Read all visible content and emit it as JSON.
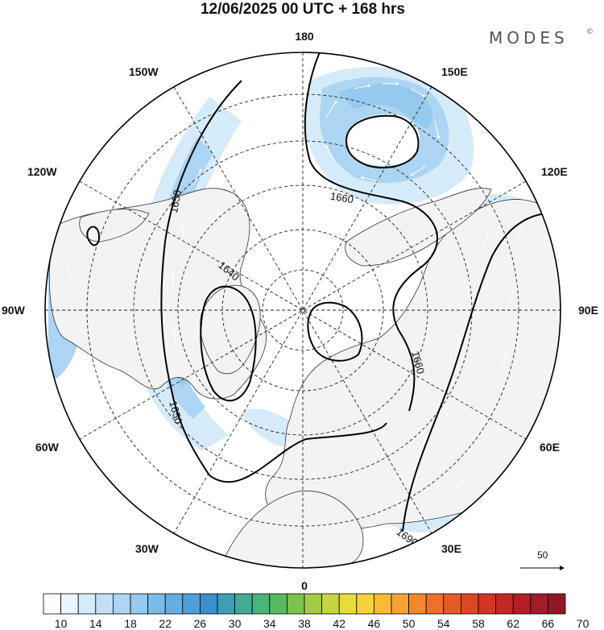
{
  "title": "12/06/2025  00 UTC  + 168 hrs",
  "brand": "MODES",
  "brand_mark": "©",
  "longitude_labels": {
    "top": "180",
    "bottom": "0",
    "left": "90W",
    "right": "90E",
    "upper_left_1": "150W",
    "upper_left_2": "120W",
    "upper_right_1": "150E",
    "upper_right_2": "120E",
    "lower_left_1": "60W",
    "lower_left_2": "30W",
    "lower_right_1": "60E",
    "lower_right_2": "30E"
  },
  "contour_labels": [
    "1650",
    "1640",
    "1660",
    "1660",
    "1650",
    "1690"
  ],
  "reference_vector": {
    "value": "50"
  },
  "colorbar": {
    "ticks": [
      "10",
      "14",
      "18",
      "22",
      "26",
      "30",
      "34",
      "38",
      "42",
      "46",
      "50",
      "54",
      "58",
      "62",
      "66",
      "70"
    ],
    "colors": [
      "#ffffff",
      "#eaf4fc",
      "#d6ebf9",
      "#c1e0f6",
      "#abd5f2",
      "#95c9ee",
      "#7dbbe8",
      "#64aee2",
      "#4f9fd9",
      "#3c8fcc",
      "#3f9db4",
      "#44aa95",
      "#4bb478",
      "#56bb5c",
      "#7cc24c",
      "#a3cb45",
      "#c6d43f",
      "#e8dc3a",
      "#f5d13a",
      "#f7bb38",
      "#f6a232",
      "#f1892c",
      "#ec7027",
      "#e65a25",
      "#de4624",
      "#d33424",
      "#c52726",
      "#b51e27",
      "#a41a27",
      "#931626"
    ]
  }
}
